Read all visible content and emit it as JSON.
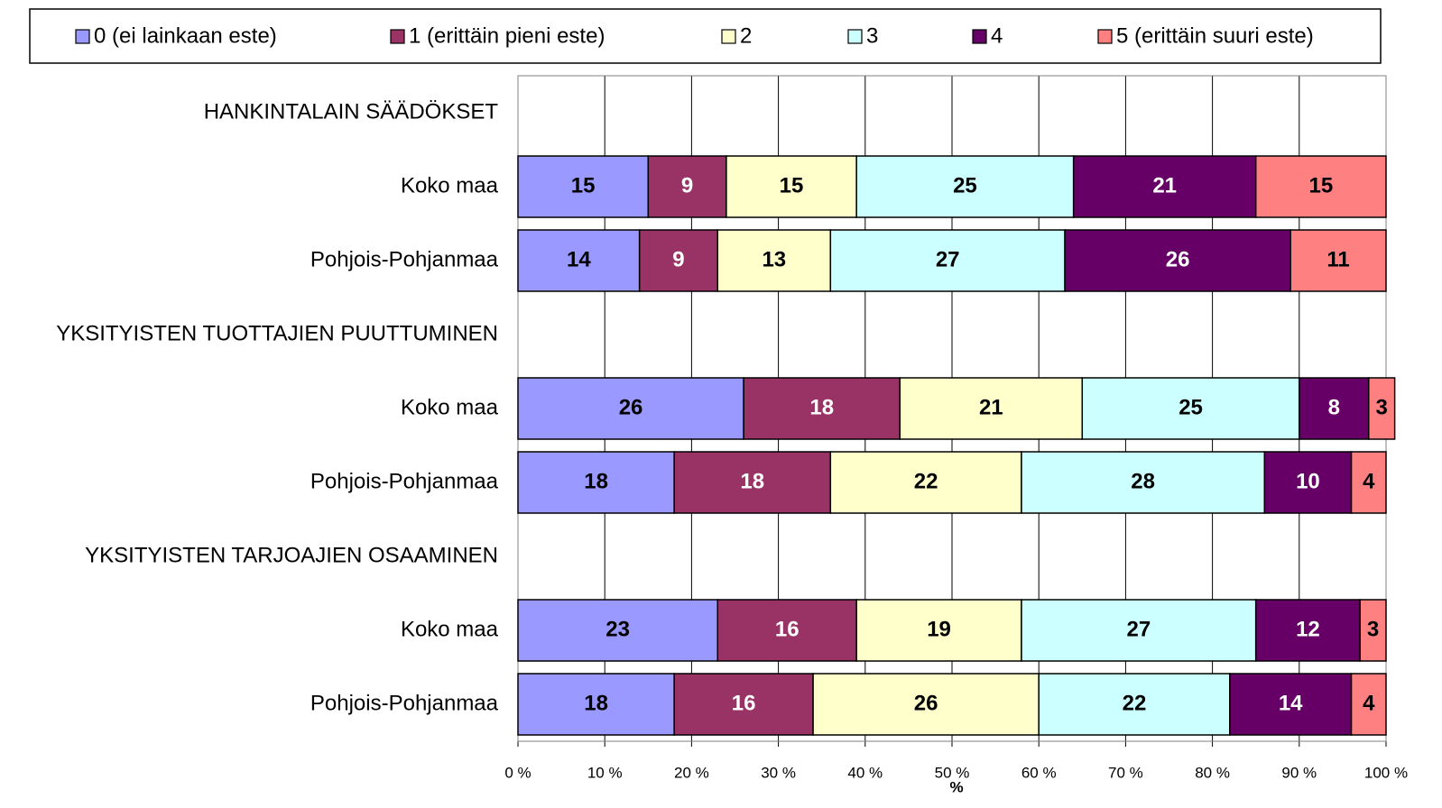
{
  "chart_data": {
    "type": "stacked-barh",
    "x_label": "%",
    "categories": [
      "HANKINTALAIN SÄÄDÖKSET",
      "Koko maa",
      "Pohjois-Pohjanmaa",
      "YKSITYISTEN TUOTTAJIEN PUUTTUMINEN",
      "Koko maa",
      "Pohjois-Pohjanmaa",
      "YKSITYISTEN TARJOAJIEN OSAAMINEN",
      "Koko maa",
      "Pohjois-Pohjanmaa"
    ],
    "series": [
      {
        "name": "0 (ei lainkaan este)",
        "color": "#9999ff",
        "values": [
          null,
          15,
          14,
          null,
          26,
          18,
          null,
          23,
          18
        ]
      },
      {
        "name": "1 (erittäin pieni este)",
        "color": "#993366",
        "values": [
          null,
          9,
          9,
          null,
          18,
          18,
          null,
          16,
          16
        ]
      },
      {
        "name": "2",
        "color": "#ffffcc",
        "values": [
          null,
          15,
          13,
          null,
          21,
          22,
          null,
          19,
          26
        ]
      },
      {
        "name": "3",
        "color": "#ccffff",
        "values": [
          null,
          25,
          27,
          null,
          25,
          28,
          null,
          27,
          22
        ]
      },
      {
        "name": "4",
        "color": "#660066",
        "values": [
          null,
          21,
          26,
          null,
          8,
          10,
          null,
          12,
          14
        ]
      },
      {
        "name": "5 (erittäin suuri este)",
        "color": "#ff8080",
        "values": [
          null,
          15,
          11,
          null,
          3,
          4,
          null,
          3,
          4
        ]
      }
    ],
    "xlim": [
      0,
      100
    ],
    "xticks": [
      {
        "value": 0,
        "label": "0 %"
      },
      {
        "value": 10,
        "label": "10 %"
      },
      {
        "value": 20,
        "label": "20 %"
      },
      {
        "value": 30,
        "label": "30 %"
      },
      {
        "value": 40,
        "label": "40 %"
      },
      {
        "value": 50,
        "label": "50 %"
      },
      {
        "value": 60,
        "label": "60 %"
      },
      {
        "value": 70,
        "label": "70 %"
      },
      {
        "value": 80,
        "label": "80 %"
      },
      {
        "value": 90,
        "label": "90 %"
      },
      {
        "value": 100,
        "label": "100 %"
      }
    ],
    "grid": true,
    "legend": "top"
  }
}
